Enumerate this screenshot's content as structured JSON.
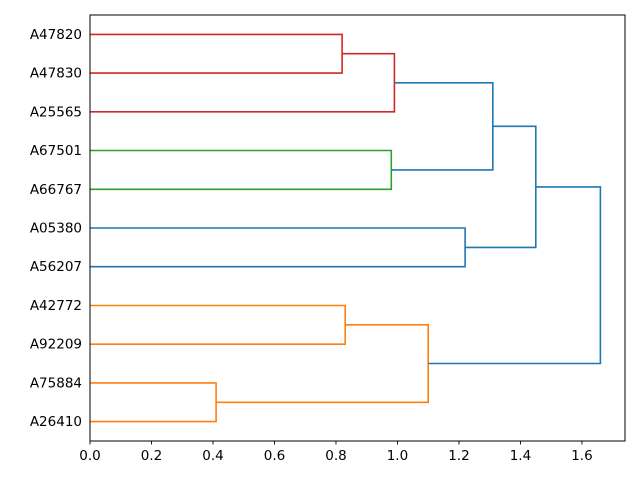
{
  "figure": {
    "background": "#ffffff",
    "title": ""
  },
  "chart_data": {
    "type": "dendrogram",
    "orientation": "right",
    "title": "",
    "xlabel": "",
    "ylabel": "",
    "grid": false,
    "legend": null,
    "leaf_labels": [
      "A47820",
      "A47830",
      "A25565",
      "A67501",
      "A66767",
      "A05380",
      "A56207",
      "A42772",
      "A92209",
      "A75884",
      "A26410"
    ],
    "merges": [
      {
        "id": "m0",
        "a": "A47820",
        "b": "A47830",
        "distance": 0.82,
        "color": "#d62728"
      },
      {
        "id": "m1",
        "a": "m0",
        "b": "A25565",
        "distance": 0.99,
        "color": "#d62728"
      },
      {
        "id": "m2",
        "a": "A67501",
        "b": "A66767",
        "distance": 0.98,
        "color": "#2ca02c"
      },
      {
        "id": "m3",
        "a": "m1",
        "b": "m2",
        "distance": 1.31,
        "color": "#1f77b4"
      },
      {
        "id": "m4",
        "a": "A05380",
        "b": "A56207",
        "distance": 1.22,
        "color": "#1f77b4"
      },
      {
        "id": "m5",
        "a": "m3",
        "b": "m4",
        "distance": 1.45,
        "color": "#1f77b4"
      },
      {
        "id": "m6",
        "a": "A42772",
        "b": "A92209",
        "distance": 0.83,
        "color": "#ff7f0e"
      },
      {
        "id": "m7",
        "a": "A75884",
        "b": "A26410",
        "distance": 0.41,
        "color": "#ff7f0e"
      },
      {
        "id": "m8",
        "a": "m6",
        "b": "m7",
        "distance": 1.1,
        "color": "#ff7f0e"
      },
      {
        "id": "m9",
        "a": "m5",
        "b": "m8",
        "distance": 1.66,
        "color": "#1f77b4"
      }
    ],
    "x_ticks": [
      {
        "value": 0.0,
        "label": "0.0"
      },
      {
        "value": 0.2,
        "label": "0.2"
      },
      {
        "value": 0.4,
        "label": "0.4"
      },
      {
        "value": 0.6,
        "label": "0.6"
      },
      {
        "value": 0.8,
        "label": "0.8"
      },
      {
        "value": 1.0,
        "label": "1.0"
      },
      {
        "value": 1.2,
        "label": "1.2"
      },
      {
        "value": 1.4,
        "label": "1.4"
      },
      {
        "value": 1.6,
        "label": "1.6"
      }
    ],
    "xlim": [
      0,
      1.74
    ],
    "colors": {
      "above_threshold_link": "#1f77b4",
      "cluster_orange": "#ff7f0e",
      "cluster_green": "#2ca02c",
      "cluster_red": "#d62728",
      "frame": "#000000",
      "text": "#000000"
    }
  }
}
